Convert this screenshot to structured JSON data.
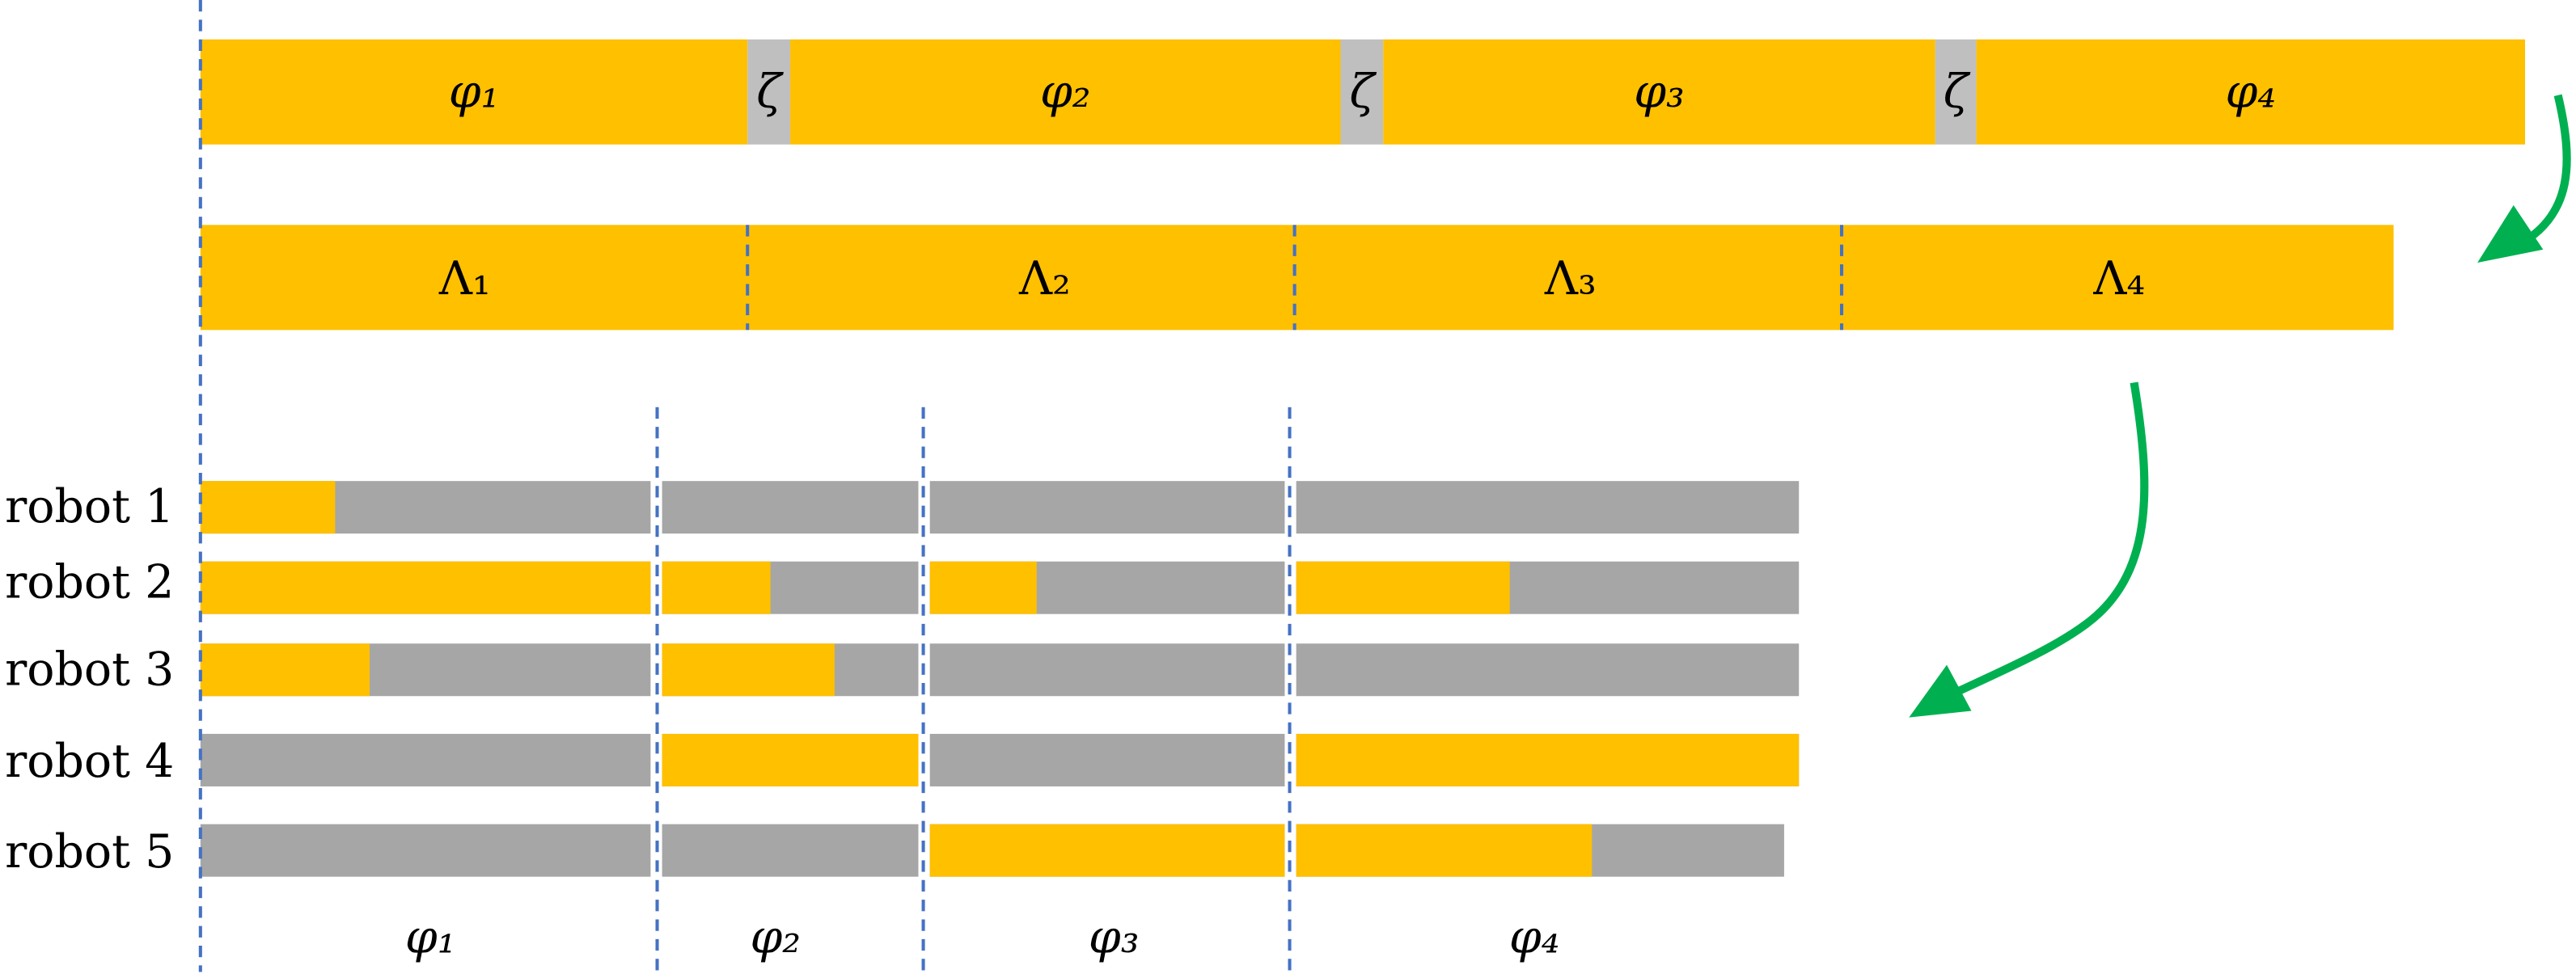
{
  "phase_bar": {
    "segments": [
      "φ₁",
      "ζ",
      "φ₂",
      "ζ",
      "φ₃",
      "ζ",
      "φ₄"
    ]
  },
  "lambda_bar": {
    "segments": [
      "Λ₁",
      "Λ₂",
      "Λ₃",
      "Λ₄"
    ]
  },
  "robots": [
    "robot 1",
    "robot 2",
    "robot 3",
    "robot 4",
    "robot 5"
  ],
  "phases": [
    "φ₁",
    "φ₂",
    "φ₃",
    "φ₄"
  ]
}
